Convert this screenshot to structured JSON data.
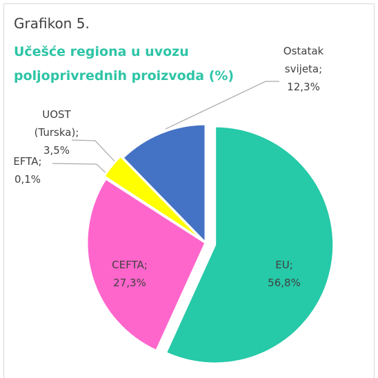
{
  "chart_data": {
    "type": "pie",
    "title": "Grafikon 5.",
    "subtitle": "Učešće regiona u uvozu poljoprivrednih proizvoda (%)",
    "categories": [
      "EU;",
      "CEFTA;",
      "EFTA;",
      "UOST (Turska);",
      "Ostatak svijeta;"
    ],
    "values": [
      56.8,
      27.3,
      0.1,
      3.5,
      12.3
    ],
    "value_labels": [
      "56,8%",
      "27,3%",
      "0,1%",
      "3,5%",
      "12,3%"
    ],
    "colors": [
      "#26c9a8",
      "#ff66cc",
      "#ffc000",
      "#ffff00",
      "#4472c4"
    ]
  }
}
